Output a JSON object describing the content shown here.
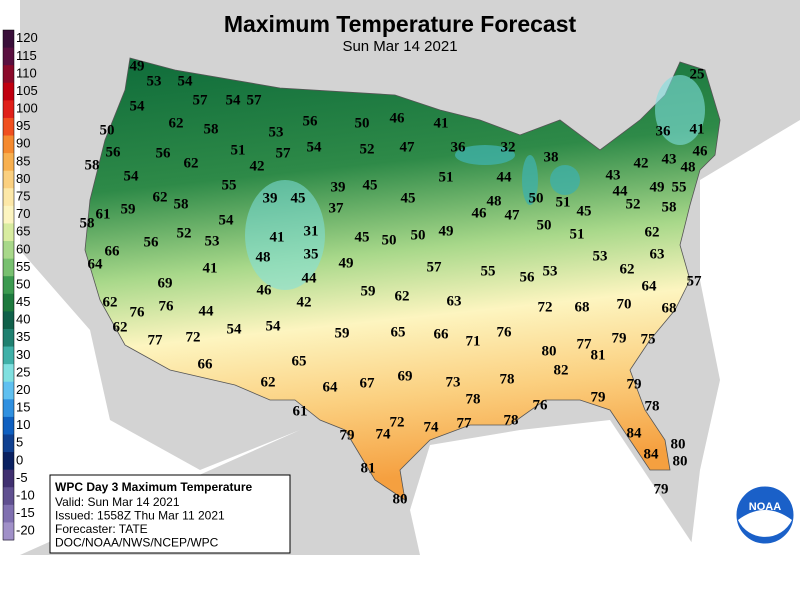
{
  "title": "Maximum Temperature Forecast",
  "subtitle": "Sun Mar 14 2021",
  "legend": {
    "labels": [
      120,
      115,
      110,
      105,
      100,
      95,
      90,
      85,
      80,
      75,
      70,
      65,
      60,
      55,
      50,
      45,
      40,
      35,
      30,
      25,
      20,
      15,
      10,
      5,
      0,
      -5,
      -10,
      -15,
      -20
    ],
    "colors": [
      "#3a0f3a",
      "#5a1040",
      "#8b0a2a",
      "#c00010",
      "#e0201a",
      "#f05020",
      "#f58a30",
      "#f8b050",
      "#fbd080",
      "#fde8a8",
      "#fdf5c0",
      "#d8eca0",
      "#a8d88a",
      "#78c070",
      "#3c9a50",
      "#1e7a3e",
      "#10604a",
      "#208070",
      "#40b0a8",
      "#80e0e0",
      "#60c0f0",
      "#3090e0",
      "#1060c0",
      "#104090",
      "#0a2060",
      "#403070",
      "#605090",
      "#8070b0",
      "#a090c8"
    ]
  },
  "info_box": {
    "heading": "WPC Day 3 Maximum Temperature",
    "lines": [
      "Valid: Sun Mar 14 2021",
      "Issued: 1558Z Thu Mar 11 2021",
      "Forecaster: TATE",
      "DOC/NOAA/NWS/NCEP/WPC"
    ]
  },
  "logo_text": "NOAA",
  "temperatures": [
    49,
    53,
    54,
    57,
    54,
    57,
    54,
    50,
    62,
    58,
    53,
    56,
    50,
    46,
    41,
    36,
    32,
    38,
    25,
    36,
    41,
    56,
    56,
    51,
    57,
    54,
    52,
    47,
    62,
    42,
    58,
    54,
    55,
    39,
    45,
    51,
    44,
    45,
    39,
    37,
    45,
    48,
    47,
    46,
    50,
    51,
    45,
    43,
    44,
    42,
    43,
    48,
    46,
    49,
    55,
    52,
    58,
    61,
    59,
    62,
    58,
    54,
    52,
    53,
    41,
    31,
    56,
    66,
    58,
    45,
    50,
    50,
    49,
    50,
    51,
    62,
    35,
    48,
    41,
    64,
    49,
    57,
    55,
    56,
    53,
    53,
    63,
    62,
    69,
    44,
    46,
    42,
    59,
    62,
    63,
    64,
    57,
    62,
    76,
    76,
    44,
    72,
    68,
    70,
    68,
    62,
    54,
    54,
    59,
    65,
    66,
    76,
    71,
    77,
    72,
    80,
    77,
    81,
    79,
    75,
    66,
    65,
    69,
    67,
    64,
    73,
    78,
    82,
    62,
    79,
    61,
    78,
    79,
    76,
    78,
    78,
    77,
    79,
    74,
    72,
    74,
    84,
    80,
    84,
    80,
    81,
    80,
    79
  ]
}
